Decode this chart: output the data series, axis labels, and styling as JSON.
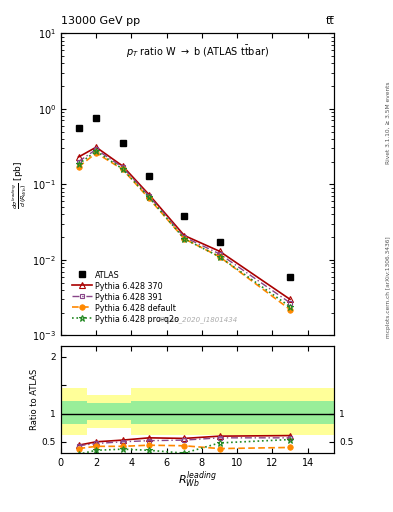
{
  "title_top": "13000 GeV pp",
  "title_right": "tt̅",
  "plot_title": "p_{T} ratio W → b (ATLAS t̅bar)",
  "watermark": "ATLAS_2020_I1801434",
  "x_data": [
    1.0,
    2.0,
    3.5,
    5.0,
    7.0,
    9.0,
    13.0
  ],
  "atlas_y": [
    0.55,
    0.75,
    0.35,
    0.13,
    0.038,
    0.017,
    0.006
  ],
  "pythia370_y": [
    0.23,
    0.31,
    0.175,
    0.073,
    0.021,
    0.013,
    0.003
  ],
  "pythia391_y": [
    0.2,
    0.29,
    0.168,
    0.07,
    0.02,
    0.012,
    0.0027
  ],
  "pythia_default_y": [
    0.17,
    0.26,
    0.158,
    0.065,
    0.019,
    0.011,
    0.0022
  ],
  "pythia_proq2o_y": [
    0.185,
    0.275,
    0.16,
    0.067,
    0.019,
    0.011,
    0.0024
  ],
  "ratio_370": [
    0.44,
    0.5,
    0.53,
    0.57,
    0.56,
    0.6,
    0.61
  ],
  "ratio_391": [
    0.43,
    0.47,
    0.5,
    0.52,
    0.53,
    0.57,
    0.57
  ],
  "ratio_default": [
    0.38,
    0.42,
    0.42,
    0.44,
    0.43,
    0.38,
    0.4
  ],
  "ratio_proq2o": [
    0.28,
    0.35,
    0.37,
    0.35,
    0.3,
    0.48,
    0.54
  ],
  "color_atlas": "#000000",
  "color_370": "#aa0000",
  "color_391": "#884488",
  "color_default": "#ff8800",
  "color_proq2o": "#228822",
  "ylim_main": [
    0.001,
    10
  ],
  "xlim": [
    0,
    15.5
  ],
  "right_label": "Rivet 3.1.10, ≥ 3.5M events",
  "side_label": "mcplots.cern.ch [arXiv:1306.3436]"
}
